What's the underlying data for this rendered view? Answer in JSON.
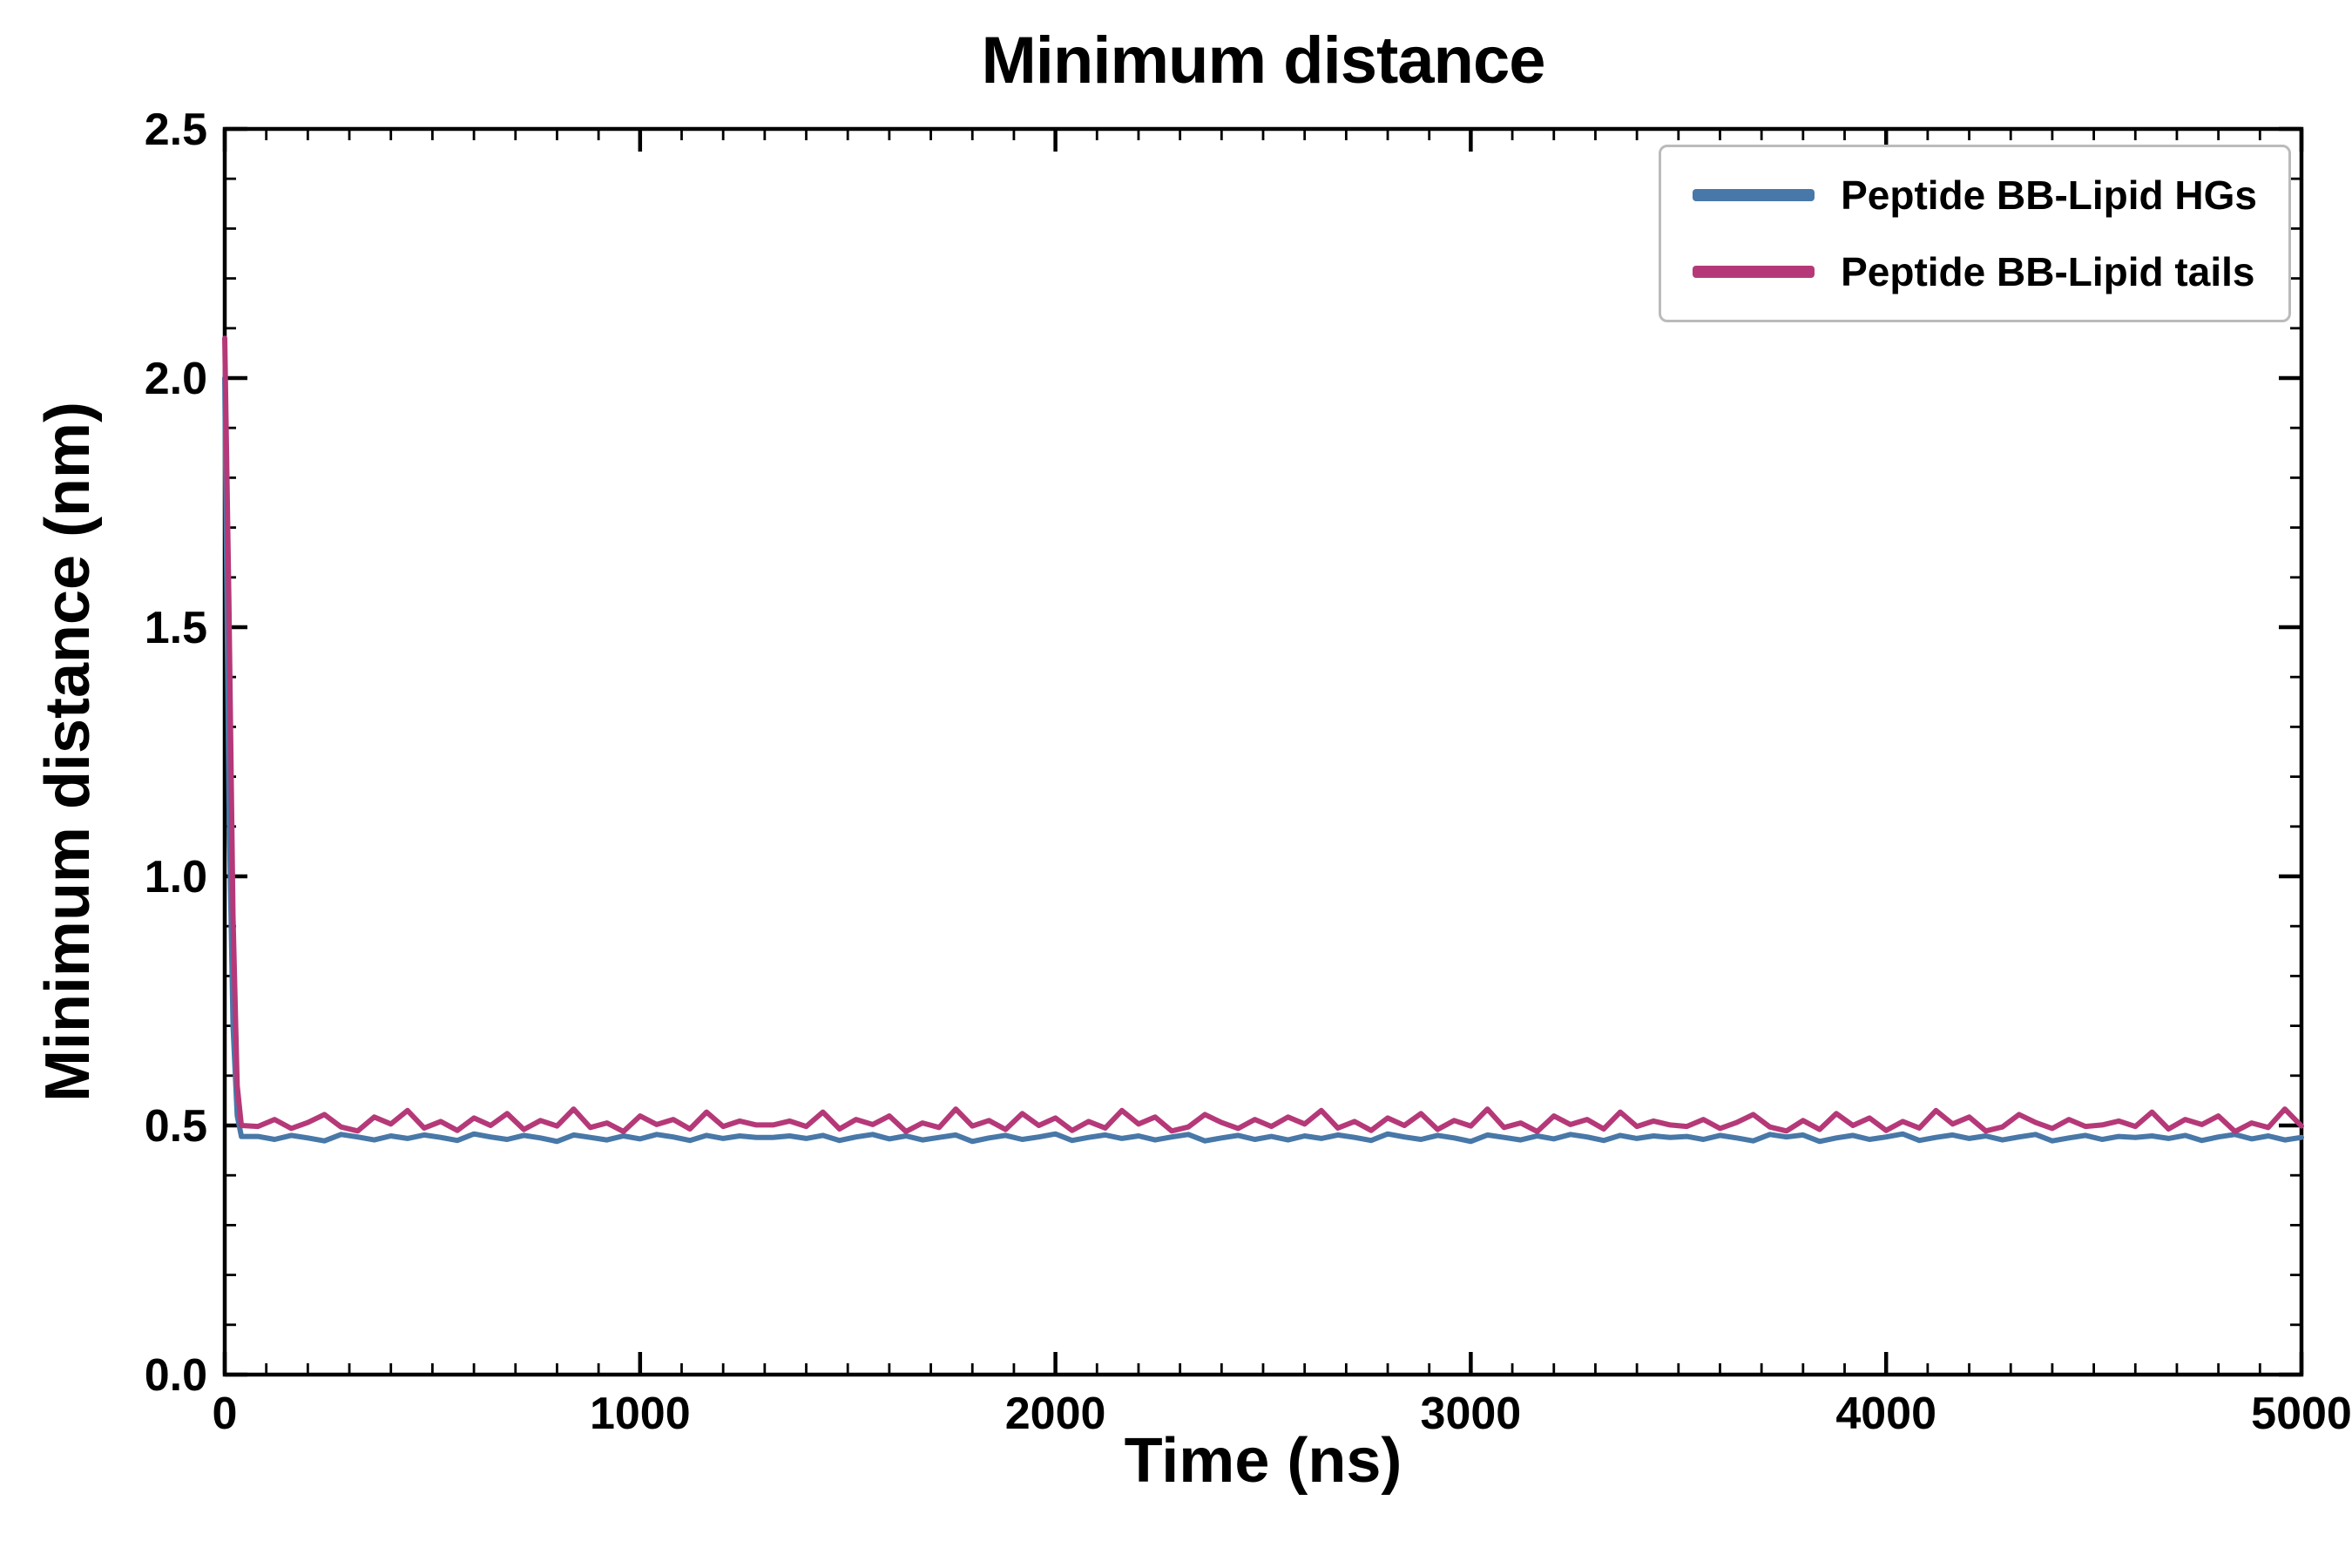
{
  "figure": {
    "background": "#ffffff",
    "axis_color": "#000000"
  },
  "chart_data": {
    "type": "line",
    "title": "Minimum distance",
    "xlabel": "Time (ns)",
    "ylabel": "Minimum distance (nm)",
    "xlim": [
      0,
      5000
    ],
    "ylim": [
      0.0,
      2.5
    ],
    "xticks": [
      0,
      1000,
      2000,
      3000,
      4000,
      5000
    ],
    "yticks": [
      0.0,
      0.5,
      1.0,
      1.5,
      2.0,
      2.5
    ],
    "x_minor_step": 100,
    "y_minor_step": 0.1,
    "grid": false,
    "legend_position": "upper right",
    "series": [
      {
        "name": "Peptide BB-Lipid HGs",
        "color": "#4878a8",
        "spike_x": [
          0,
          10,
          20,
          30,
          40
        ],
        "spike_y": [
          2.0,
          1.15,
          0.7,
          0.52,
          0.478
        ],
        "steady_x_start": 80,
        "steady_x_step": 40,
        "steady_y": [
          0.478,
          0.472,
          0.48,
          0.475,
          0.469,
          0.482,
          0.477,
          0.471,
          0.479,
          0.474,
          0.481,
          0.476,
          0.47,
          0.483,
          0.477,
          0.472,
          0.48,
          0.475,
          0.468,
          0.481,
          0.476,
          0.471,
          0.479,
          0.473,
          0.482,
          0.477,
          0.47,
          0.48,
          0.474,
          0.479,
          0.476,
          0.476,
          0.479,
          0.474,
          0.48,
          0.47,
          0.477,
          0.482,
          0.473,
          0.479,
          0.471,
          0.476,
          0.481,
          0.468,
          0.475,
          0.48,
          0.472,
          0.477,
          0.483,
          0.47,
          0.476,
          0.481,
          0.474,
          0.479,
          0.471,
          0.477,
          0.482,
          0.469,
          0.475,
          0.48,
          0.472,
          0.478,
          0.471,
          0.479,
          0.474,
          0.481,
          0.476,
          0.47,
          0.483,
          0.477,
          0.472,
          0.48,
          0.475,
          0.468,
          0.481,
          0.476,
          0.471,
          0.479,
          0.473,
          0.482,
          0.477,
          0.47,
          0.48,
          0.474,
          0.479,
          0.476,
          0.478,
          0.472,
          0.48,
          0.475,
          0.469,
          0.482,
          0.477,
          0.481,
          0.468,
          0.475,
          0.48,
          0.472,
          0.477,
          0.483,
          0.47,
          0.476,
          0.481,
          0.474,
          0.479,
          0.471,
          0.477,
          0.482,
          0.469,
          0.475,
          0.48,
          0.472,
          0.478,
          0.476,
          0.479,
          0.474,
          0.48,
          0.47,
          0.477,
          0.482,
          0.473,
          0.479,
          0.471,
          0.476
        ]
      },
      {
        "name": "Peptide BB-Lipid tails",
        "color": "#b53978",
        "spike_x": [
          0,
          10,
          20,
          30,
          40
        ],
        "spike_y": [
          2.08,
          1.55,
          0.92,
          0.58,
          0.5
        ],
        "steady_x_start": 80,
        "steady_x_step": 40,
        "steady_y": [
          0.498,
          0.512,
          0.494,
          0.506,
          0.522,
          0.497,
          0.489,
          0.517,
          0.503,
          0.53,
          0.495,
          0.508,
          0.49,
          0.515,
          0.5,
          0.524,
          0.492,
          0.51,
          0.499,
          0.533,
          0.496,
          0.505,
          0.488,
          0.519,
          0.502,
          0.512,
          0.493,
          0.527,
          0.498,
          0.509,
          0.501,
          0.501,
          0.509,
          0.498,
          0.527,
          0.493,
          0.512,
          0.502,
          0.519,
          0.488,
          0.505,
          0.496,
          0.533,
          0.499,
          0.51,
          0.492,
          0.524,
          0.5,
          0.515,
          0.49,
          0.508,
          0.495,
          0.53,
          0.503,
          0.517,
          0.489,
          0.497,
          0.522,
          0.506,
          0.494,
          0.512,
          0.498,
          0.517,
          0.503,
          0.53,
          0.495,
          0.508,
          0.49,
          0.515,
          0.5,
          0.524,
          0.492,
          0.51,
          0.499,
          0.533,
          0.496,
          0.505,
          0.488,
          0.519,
          0.502,
          0.512,
          0.493,
          0.527,
          0.498,
          0.509,
          0.501,
          0.498,
          0.512,
          0.494,
          0.506,
          0.522,
          0.497,
          0.489,
          0.51,
          0.492,
          0.524,
          0.5,
          0.515,
          0.49,
          0.508,
          0.495,
          0.53,
          0.503,
          0.517,
          0.489,
          0.497,
          0.522,
          0.506,
          0.494,
          0.512,
          0.498,
          0.501,
          0.509,
          0.498,
          0.527,
          0.493,
          0.512,
          0.502,
          0.519,
          0.488,
          0.505,
          0.496,
          0.533,
          0.499
        ]
      }
    ]
  }
}
